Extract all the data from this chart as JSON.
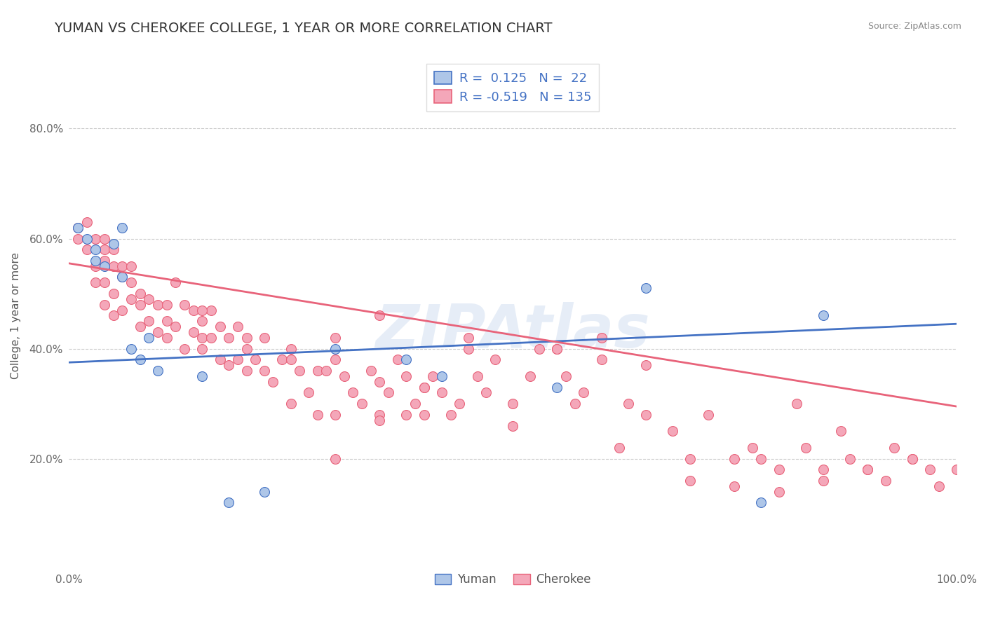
{
  "title": "YUMAN VS CHEROKEE COLLEGE, 1 YEAR OR MORE CORRELATION CHART",
  "source_text": "Source: ZipAtlas.com",
  "ylabel": "College, 1 year or more",
  "xlim": [
    0.0,
    1.0
  ],
  "ylim": [
    0.0,
    0.92
  ],
  "yuman_color": "#aec6e8",
  "cherokee_color": "#f4a7b9",
  "yuman_line_color": "#4472C4",
  "cherokee_line_color": "#E8637A",
  "R_yuman": 0.125,
  "N_yuman": 22,
  "R_cherokee": -0.519,
  "N_cherokee": 135,
  "legend_label_yuman": "Yuman",
  "legend_label_cherokee": "Cherokee",
  "background_color": "#ffffff",
  "grid_color": "#cccccc",
  "title_fontsize": 14,
  "axis_label_fontsize": 11,
  "tick_fontsize": 11,
  "yuman_scatter_x": [
    0.01,
    0.02,
    0.03,
    0.03,
    0.04,
    0.05,
    0.06,
    0.06,
    0.07,
    0.08,
    0.09,
    0.1,
    0.15,
    0.18,
    0.22,
    0.3,
    0.38,
    0.42,
    0.55,
    0.65,
    0.78,
    0.85
  ],
  "yuman_scatter_y": [
    0.62,
    0.6,
    0.58,
    0.56,
    0.55,
    0.59,
    0.62,
    0.53,
    0.4,
    0.38,
    0.42,
    0.36,
    0.35,
    0.12,
    0.14,
    0.4,
    0.38,
    0.35,
    0.33,
    0.51,
    0.12,
    0.46
  ],
  "cherokee_scatter_x": [
    0.01,
    0.01,
    0.02,
    0.02,
    0.03,
    0.03,
    0.03,
    0.04,
    0.04,
    0.04,
    0.04,
    0.04,
    0.05,
    0.05,
    0.05,
    0.05,
    0.06,
    0.06,
    0.06,
    0.07,
    0.07,
    0.07,
    0.08,
    0.08,
    0.08,
    0.09,
    0.09,
    0.1,
    0.1,
    0.11,
    0.11,
    0.11,
    0.12,
    0.12,
    0.13,
    0.13,
    0.14,
    0.14,
    0.15,
    0.15,
    0.15,
    0.16,
    0.16,
    0.17,
    0.17,
    0.18,
    0.18,
    0.19,
    0.19,
    0.2,
    0.2,
    0.21,
    0.22,
    0.22,
    0.23,
    0.24,
    0.25,
    0.26,
    0.27,
    0.28,
    0.28,
    0.29,
    0.3,
    0.3,
    0.31,
    0.32,
    0.33,
    0.34,
    0.35,
    0.35,
    0.36,
    0.37,
    0.38,
    0.38,
    0.39,
    0.4,
    0.4,
    0.41,
    0.42,
    0.43,
    0.44,
    0.45,
    0.46,
    0.47,
    0.48,
    0.5,
    0.52,
    0.53,
    0.55,
    0.56,
    0.57,
    0.58,
    0.6,
    0.62,
    0.63,
    0.65,
    0.68,
    0.7,
    0.72,
    0.75,
    0.77,
    0.78,
    0.8,
    0.82,
    0.83,
    0.85,
    0.87,
    0.88,
    0.9,
    0.92,
    0.93,
    0.95,
    0.97,
    0.98,
    1.0,
    0.25,
    0.3,
    0.35,
    0.4,
    0.45,
    0.5,
    0.55,
    0.6,
    0.65,
    0.7,
    0.75,
    0.8,
    0.85,
    0.9,
    0.95,
    0.15,
    0.2,
    0.25,
    0.3,
    0.35
  ],
  "cherokee_scatter_y": [
    0.62,
    0.6,
    0.63,
    0.58,
    0.6,
    0.55,
    0.52,
    0.6,
    0.56,
    0.52,
    0.58,
    0.48,
    0.55,
    0.5,
    0.46,
    0.58,
    0.53,
    0.47,
    0.55,
    0.52,
    0.49,
    0.55,
    0.5,
    0.44,
    0.48,
    0.49,
    0.45,
    0.48,
    0.43,
    0.48,
    0.45,
    0.42,
    0.52,
    0.44,
    0.48,
    0.4,
    0.43,
    0.47,
    0.42,
    0.4,
    0.45,
    0.42,
    0.47,
    0.44,
    0.38,
    0.42,
    0.37,
    0.44,
    0.38,
    0.4,
    0.36,
    0.38,
    0.42,
    0.36,
    0.34,
    0.38,
    0.4,
    0.36,
    0.32,
    0.36,
    0.28,
    0.36,
    0.38,
    0.28,
    0.35,
    0.32,
    0.3,
    0.36,
    0.34,
    0.28,
    0.32,
    0.38,
    0.35,
    0.28,
    0.3,
    0.33,
    0.28,
    0.35,
    0.32,
    0.28,
    0.3,
    0.4,
    0.35,
    0.32,
    0.38,
    0.3,
    0.35,
    0.4,
    0.4,
    0.35,
    0.3,
    0.32,
    0.38,
    0.22,
    0.3,
    0.28,
    0.25,
    0.2,
    0.28,
    0.15,
    0.22,
    0.2,
    0.18,
    0.3,
    0.22,
    0.18,
    0.25,
    0.2,
    0.18,
    0.16,
    0.22,
    0.2,
    0.18,
    0.15,
    0.18,
    0.38,
    0.2,
    0.27,
    0.33,
    0.42,
    0.26,
    0.4,
    0.42,
    0.37,
    0.16,
    0.2,
    0.14,
    0.16,
    0.18,
    0.2,
    0.47,
    0.42,
    0.3,
    0.42,
    0.46
  ]
}
